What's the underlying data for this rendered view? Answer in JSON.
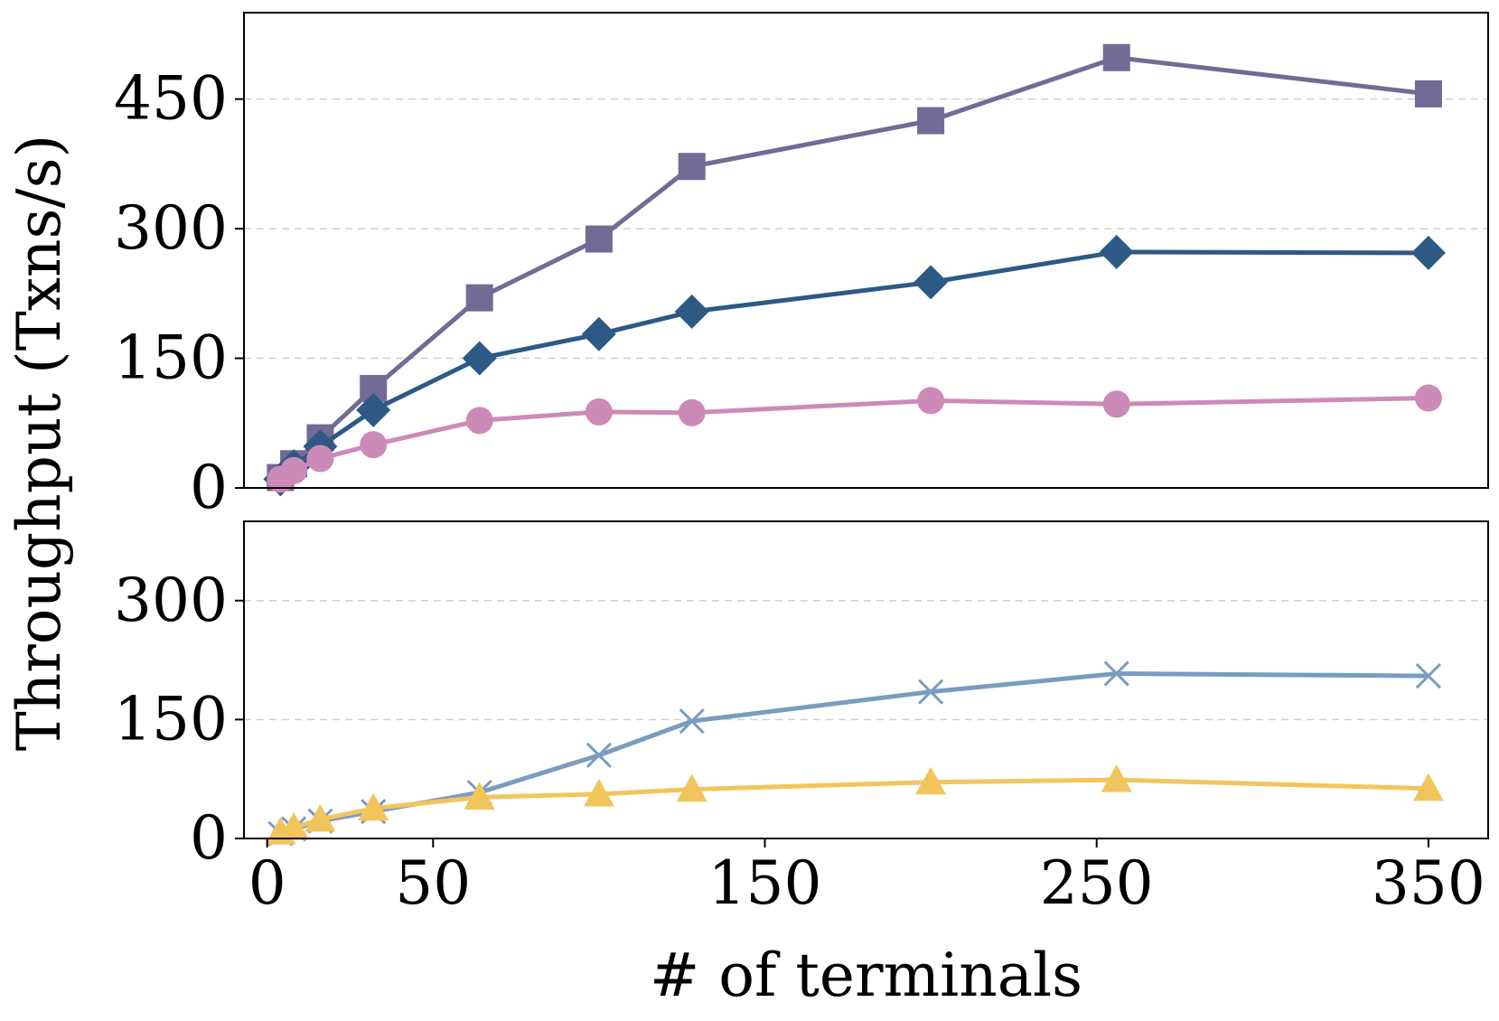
{
  "chart_data": {
    "type": "line",
    "ylabel": "Throughput (Txns/s)",
    "xlabel": "# of terminals",
    "x_ticks": [
      "0",
      "50",
      "150",
      "250",
      "350"
    ],
    "x_tick_values": [
      0,
      50,
      150,
      250,
      350
    ],
    "xlim": [
      -7,
      368
    ],
    "panels": [
      {
        "name": "top",
        "ylim": [
          0,
          550
        ],
        "y_ticks": [
          "0",
          "150",
          "300",
          "450"
        ],
        "y_tick_values": [
          0,
          150,
          300,
          450
        ],
        "grid": true,
        "series": [
          {
            "name": "series-square",
            "color": "#726b95",
            "marker": "square",
            "x": [
              4,
              8,
              16,
              32,
              64,
              100,
              128,
              200,
              256,
              350
            ],
            "y": [
              12,
              28,
              58,
              115,
              220,
              288,
              372,
              425,
              498,
              456
            ]
          },
          {
            "name": "series-diamond",
            "color": "#2d5a85",
            "marker": "diamond",
            "x": [
              4,
              8,
              16,
              32,
              64,
              100,
              128,
              200,
              256,
              350
            ],
            "y": [
              10,
              25,
              48,
              90,
              150,
              178,
              204,
              238,
              273,
              272
            ]
          },
          {
            "name": "series-circle",
            "color": "#cc8ab8",
            "marker": "circle",
            "x": [
              4,
              8,
              16,
              32,
              64,
              100,
              128,
              200,
              256,
              350
            ],
            "y": [
              10,
              20,
              34,
              50,
              78,
              88,
              87,
              101,
              97,
              104
            ]
          }
        ]
      },
      {
        "name": "bottom",
        "ylim": [
          0,
          400
        ],
        "y_ticks": [
          "0",
          "150",
          "300"
        ],
        "y_tick_values": [
          0,
          150,
          300
        ],
        "grid": true,
        "series": [
          {
            "name": "series-x",
            "color": "#7a9cc0",
            "marker": "x",
            "x": [
              4,
              8,
              16,
              32,
              64,
              100,
              128,
              200,
              256,
              350
            ],
            "y": [
              6,
              12,
              22,
              34,
              58,
              105,
              148,
              185,
              208,
              205
            ]
          },
          {
            "name": "series-triangle",
            "color": "#f2c55c",
            "marker": "triangle",
            "x": [
              4,
              8,
              16,
              32,
              64,
              100,
              128,
              200,
              256,
              350
            ],
            "y": [
              8,
              14,
              24,
              38,
              52,
              56,
              62,
              71,
              74,
              63
            ]
          }
        ]
      }
    ]
  }
}
